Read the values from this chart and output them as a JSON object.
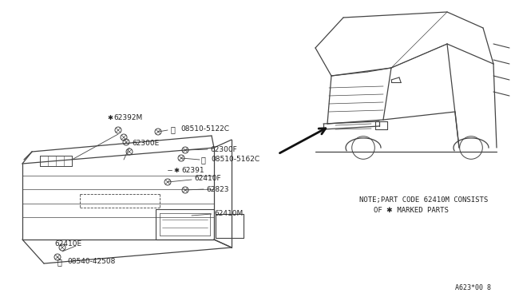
{
  "bg_color": "#ffffff",
  "line_color": "#444444",
  "text_color": "#222222",
  "note_line1": "NOTE;PART CODE 62410M CONSISTS",
  "note_line2": "OF ✱ MARKED PARTS",
  "diagram_code": "A623*00 8"
}
